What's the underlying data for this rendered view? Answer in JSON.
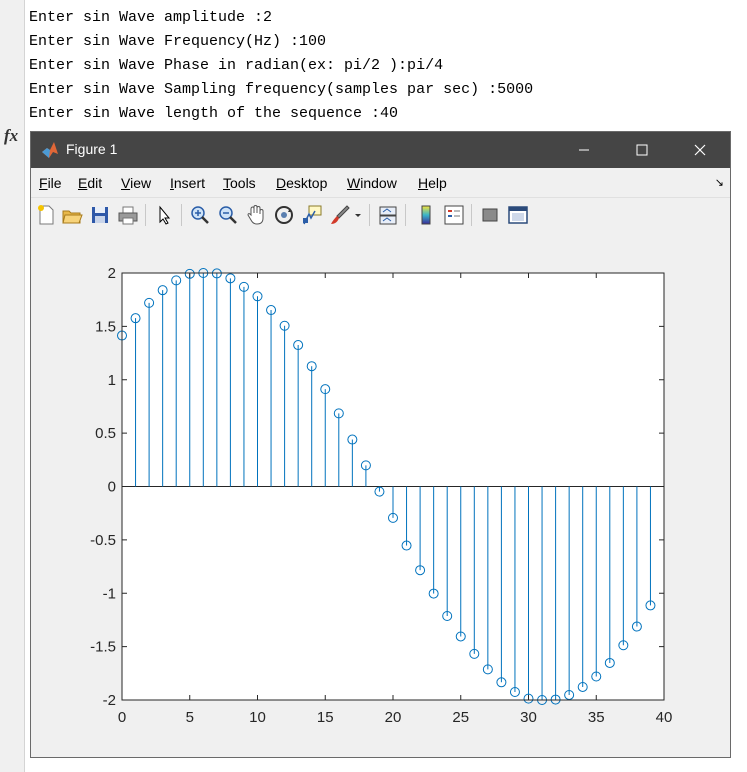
{
  "console": {
    "lines": [
      "Enter sin Wave amplitude :2",
      "Enter sin Wave Frequency(Hz) :100",
      "Enter sin Wave Phase in radian(ex: pi/2 ):pi/4",
      "Enter sin Wave Sampling frequency(samples par sec) :5000",
      "Enter sin Wave length of the sequence :40"
    ],
    "prompt_icon": "fx"
  },
  "figure": {
    "title": "Figure 1",
    "icon": "matlab-logo-icon",
    "window_buttons": [
      "minimize-icon",
      "maximize-icon",
      "close-icon"
    ],
    "menu": [
      "File",
      "Edit",
      "View",
      "Insert",
      "Tools",
      "Desktop",
      "Window",
      "Help"
    ],
    "toolbar_icons": [
      "new-figure-icon",
      "open-file-icon",
      "save-icon",
      "print-icon",
      "select-arrow-icon",
      "zoom-in-icon",
      "zoom-out-icon",
      "pan-hand-icon",
      "rotate-3d-icon",
      "data-cursor-icon",
      "brush-icon",
      "brush-dropdown-icon",
      "link-plot-icon",
      "colorbar-icon",
      "legend-icon",
      "hide-plot-tools-icon",
      "show-plot-tools-icon"
    ]
  },
  "chart_data": {
    "type": "stem",
    "color": "#0072BD",
    "x": [
      0,
      1,
      2,
      3,
      4,
      5,
      6,
      7,
      8,
      9,
      10,
      11,
      12,
      13,
      14,
      15,
      16,
      17,
      18,
      19,
      20,
      21,
      22,
      23,
      24,
      25,
      26,
      27,
      28,
      29,
      30,
      31,
      32,
      33,
      34,
      35,
      36,
      37,
      38,
      39
    ],
    "y": [
      1.414,
      1.577,
      1.72,
      1.839,
      1.931,
      1.992,
      2.0,
      1.996,
      1.95,
      1.87,
      1.782,
      1.653,
      1.506,
      1.325,
      1.127,
      0.912,
      0.685,
      0.44,
      0.198,
      -0.048,
      -0.294,
      -0.553,
      -0.784,
      -1.003,
      -1.213,
      -1.405,
      -1.568,
      -1.713,
      -1.834,
      -1.925,
      -1.987,
      -2.0,
      -1.996,
      -1.953,
      -1.878,
      -1.78,
      -1.653,
      -1.487,
      -1.312,
      -1.114
    ],
    "xlim": [
      0,
      40
    ],
    "ylim": [
      -2,
      2
    ],
    "xticks": [
      0,
      5,
      10,
      15,
      20,
      25,
      30,
      35,
      40
    ],
    "yticks": [
      2,
      1.5,
      1,
      0.5,
      0,
      -0.5,
      -1,
      -1.5,
      -2
    ],
    "yticklabels": [
      "2",
      "1.5",
      "1",
      "0.5",
      "0",
      "-0.5",
      "-1",
      "-1.5",
      "-2"
    ],
    "grid": false,
    "title": "",
    "xlabel": "",
    "ylabel": ""
  }
}
